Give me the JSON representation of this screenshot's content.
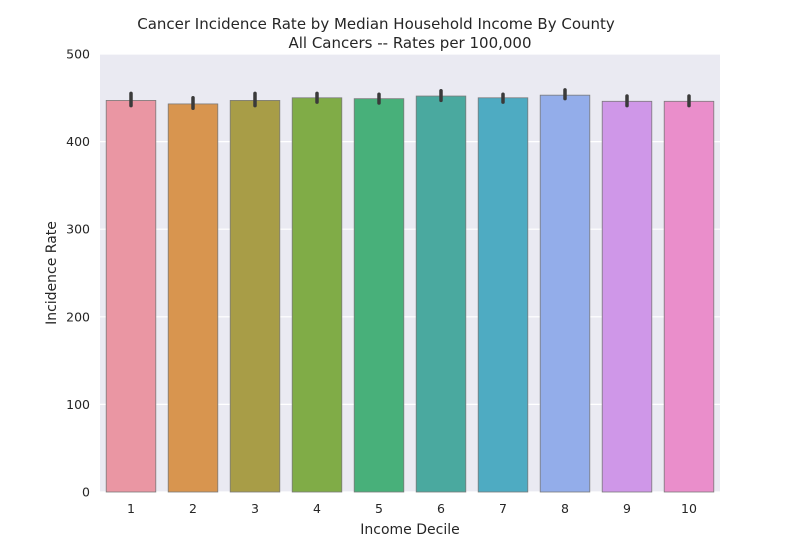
{
  "chart_data": {
    "type": "bar",
    "title": "Cancer Incidence Rate by Median Household Income By County",
    "subtitle": "All Cancers -- Rates per 100,000",
    "xlabel": "Income Decile",
    "ylabel": "Incidence Rate",
    "categories": [
      "1",
      "2",
      "3",
      "4",
      "5",
      "6",
      "7",
      "8",
      "9",
      "10"
    ],
    "values": [
      447,
      443,
      447,
      450,
      449,
      452,
      450,
      453,
      446,
      446
    ],
    "error_low": [
      441,
      438,
      441,
      445,
      444,
      447,
      445,
      449,
      441,
      441
    ],
    "error_high": [
      455,
      450,
      455,
      455,
      454,
      458,
      454,
      459,
      452,
      452
    ],
    "ylim": [
      0,
      500
    ],
    "yticks": [
      0,
      100,
      200,
      300,
      400,
      500
    ],
    "colors": [
      "#ea96a3",
      "#d8954f",
      "#a89d47",
      "#80ac47",
      "#48b07a",
      "#4aa99f",
      "#4eabc2",
      "#93adea",
      "#cf97e8",
      "#ea8ecb"
    ],
    "plot_background": "#eaeaf2",
    "grid": true,
    "legend": "none"
  }
}
